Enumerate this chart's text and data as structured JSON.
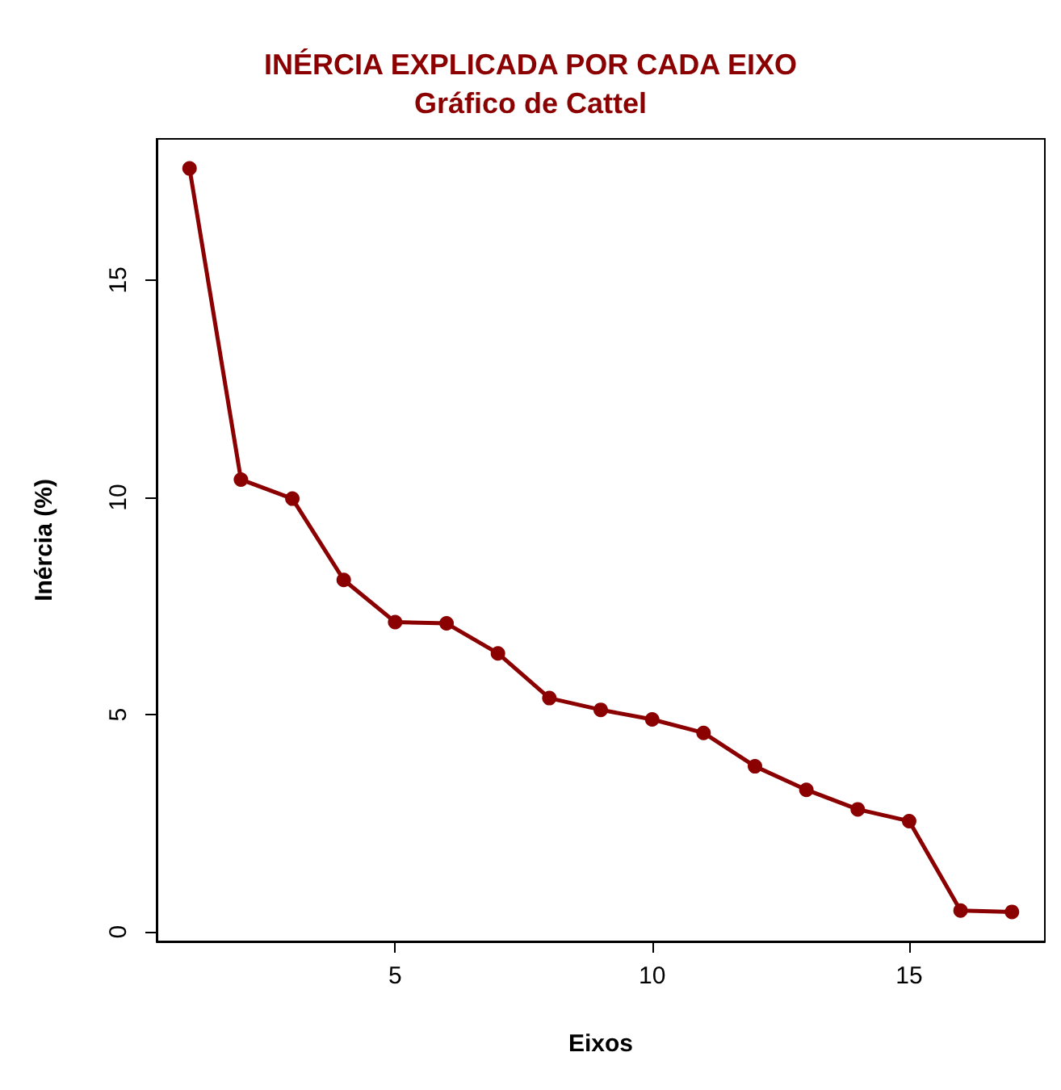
{
  "chart_data": {
    "type": "line",
    "title": "INÉRCIA EXPLICADA POR CADA EIXO",
    "subtitle": "Gráfico de Cattel",
    "xlabel": "Eixos",
    "ylabel": "Inércia (%)",
    "x": [
      1,
      2,
      3,
      4,
      5,
      6,
      7,
      8,
      9,
      10,
      11,
      12,
      13,
      14,
      15,
      16,
      17
    ],
    "series": [
      {
        "color": "#8b0000",
        "values": [
          17.57,
          10.41,
          9.97,
          8.1,
          7.13,
          7.1,
          6.41,
          5.38,
          5.11,
          4.89,
          4.58,
          3.81,
          3.27,
          2.82,
          2.55,
          0.49,
          0.46
        ]
      }
    ],
    "xlim": [
      0.36,
      17.64
    ],
    "ylim": [
      -0.22,
      18.25
    ],
    "xticks": [
      5,
      10,
      15
    ],
    "yticks": [
      0,
      5,
      10,
      15
    ],
    "grid": false,
    "marker": "circle",
    "line_style": "solid"
  }
}
